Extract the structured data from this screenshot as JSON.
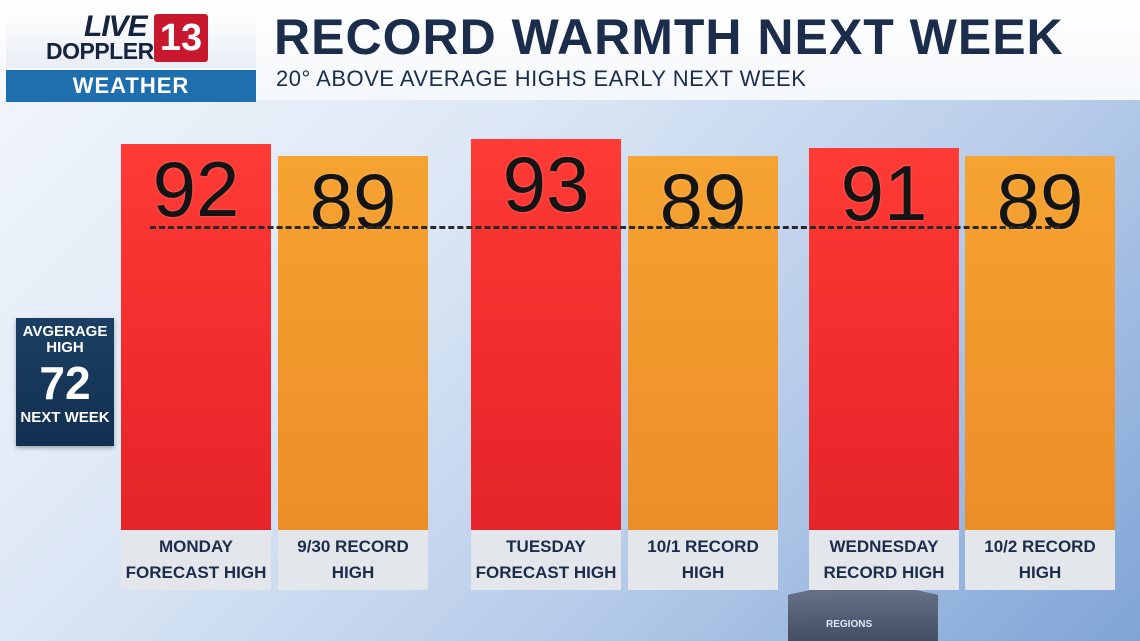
{
  "logo": {
    "live": "LIVE",
    "doppler": "DOPPLER",
    "number": "13",
    "weather": "WEATHER"
  },
  "title": "RECORD WARMTH NEXT WEEK",
  "subtitle": "20° ABOVE AVERAGE HIGHS EARLY NEXT WEEK",
  "average": {
    "label_top": "AVGERAGE HIGH",
    "value": 72,
    "label_bottom": "NEXT WEEK"
  },
  "background_sign": "REGIONS",
  "colors": {
    "forecast": "#ef2b2d",
    "record": "#f0962c",
    "header": "#1c2c4b",
    "weather_band": "#1f6fae",
    "avg_box": "#123050"
  },
  "chart_data": {
    "type": "bar",
    "title": "RECORD WARMTH NEXT WEEK",
    "categories": [
      [
        "MONDAY",
        "FORECAST HIGH"
      ],
      [
        "9/30 RECORD",
        "HIGH"
      ],
      [
        "TUESDAY",
        "FORECAST HIGH"
      ],
      [
        "10/1 RECORD",
        "HIGH"
      ],
      [
        "WEDNESDAY",
        "RECORD HIGH"
      ],
      [
        "10/2 RECORD",
        "HIGH"
      ]
    ],
    "values": [
      92,
      89,
      93,
      89,
      91,
      89
    ],
    "bar_kinds": [
      "forecast",
      "record",
      "forecast",
      "record",
      "forecast",
      "record"
    ],
    "reference_line": {
      "value": 72,
      "style": "dashed"
    },
    "ylim": [
      0,
      96
    ],
    "grid": false,
    "legend": "none"
  }
}
